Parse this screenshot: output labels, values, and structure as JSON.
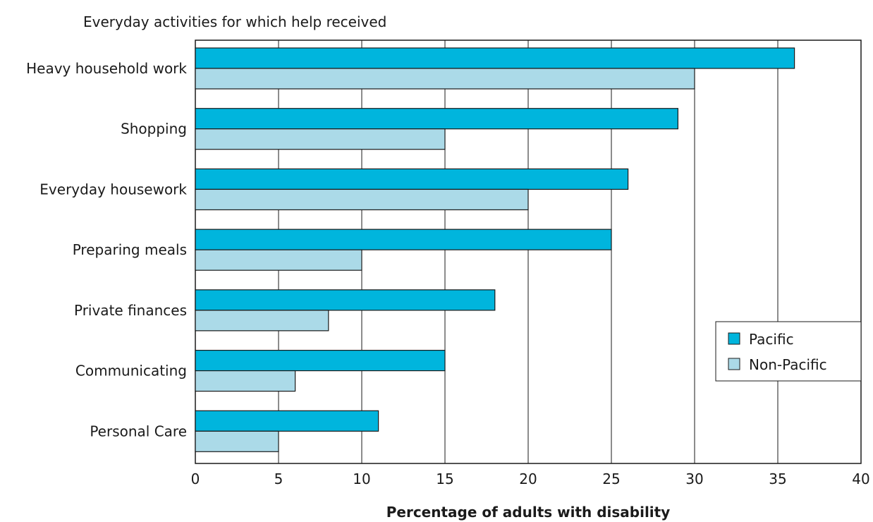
{
  "chart_data": {
    "type": "bar",
    "orientation": "horizontal",
    "title": "Everyday activities for which help received",
    "xlabel": "Percentage of adults with disability",
    "ylabel": "",
    "xlim": [
      0,
      40
    ],
    "xticks": [
      0,
      5,
      10,
      15,
      20,
      25,
      30,
      35,
      40
    ],
    "grid": "vertical",
    "legend_position": "right",
    "categories": [
      "Heavy household work",
      "Shopping",
      "Everyday housework",
      "Preparing meals",
      "Private finances",
      "Communicating",
      "Personal Care"
    ],
    "series": [
      {
        "name": "Pacific",
        "color": "#00b5dd",
        "values": [
          36,
          29,
          26,
          25,
          18,
          15,
          11
        ]
      },
      {
        "name": "Non-Pacific",
        "color": "#abdae8",
        "values": [
          30,
          15,
          20,
          10,
          8,
          6,
          5
        ]
      }
    ]
  }
}
